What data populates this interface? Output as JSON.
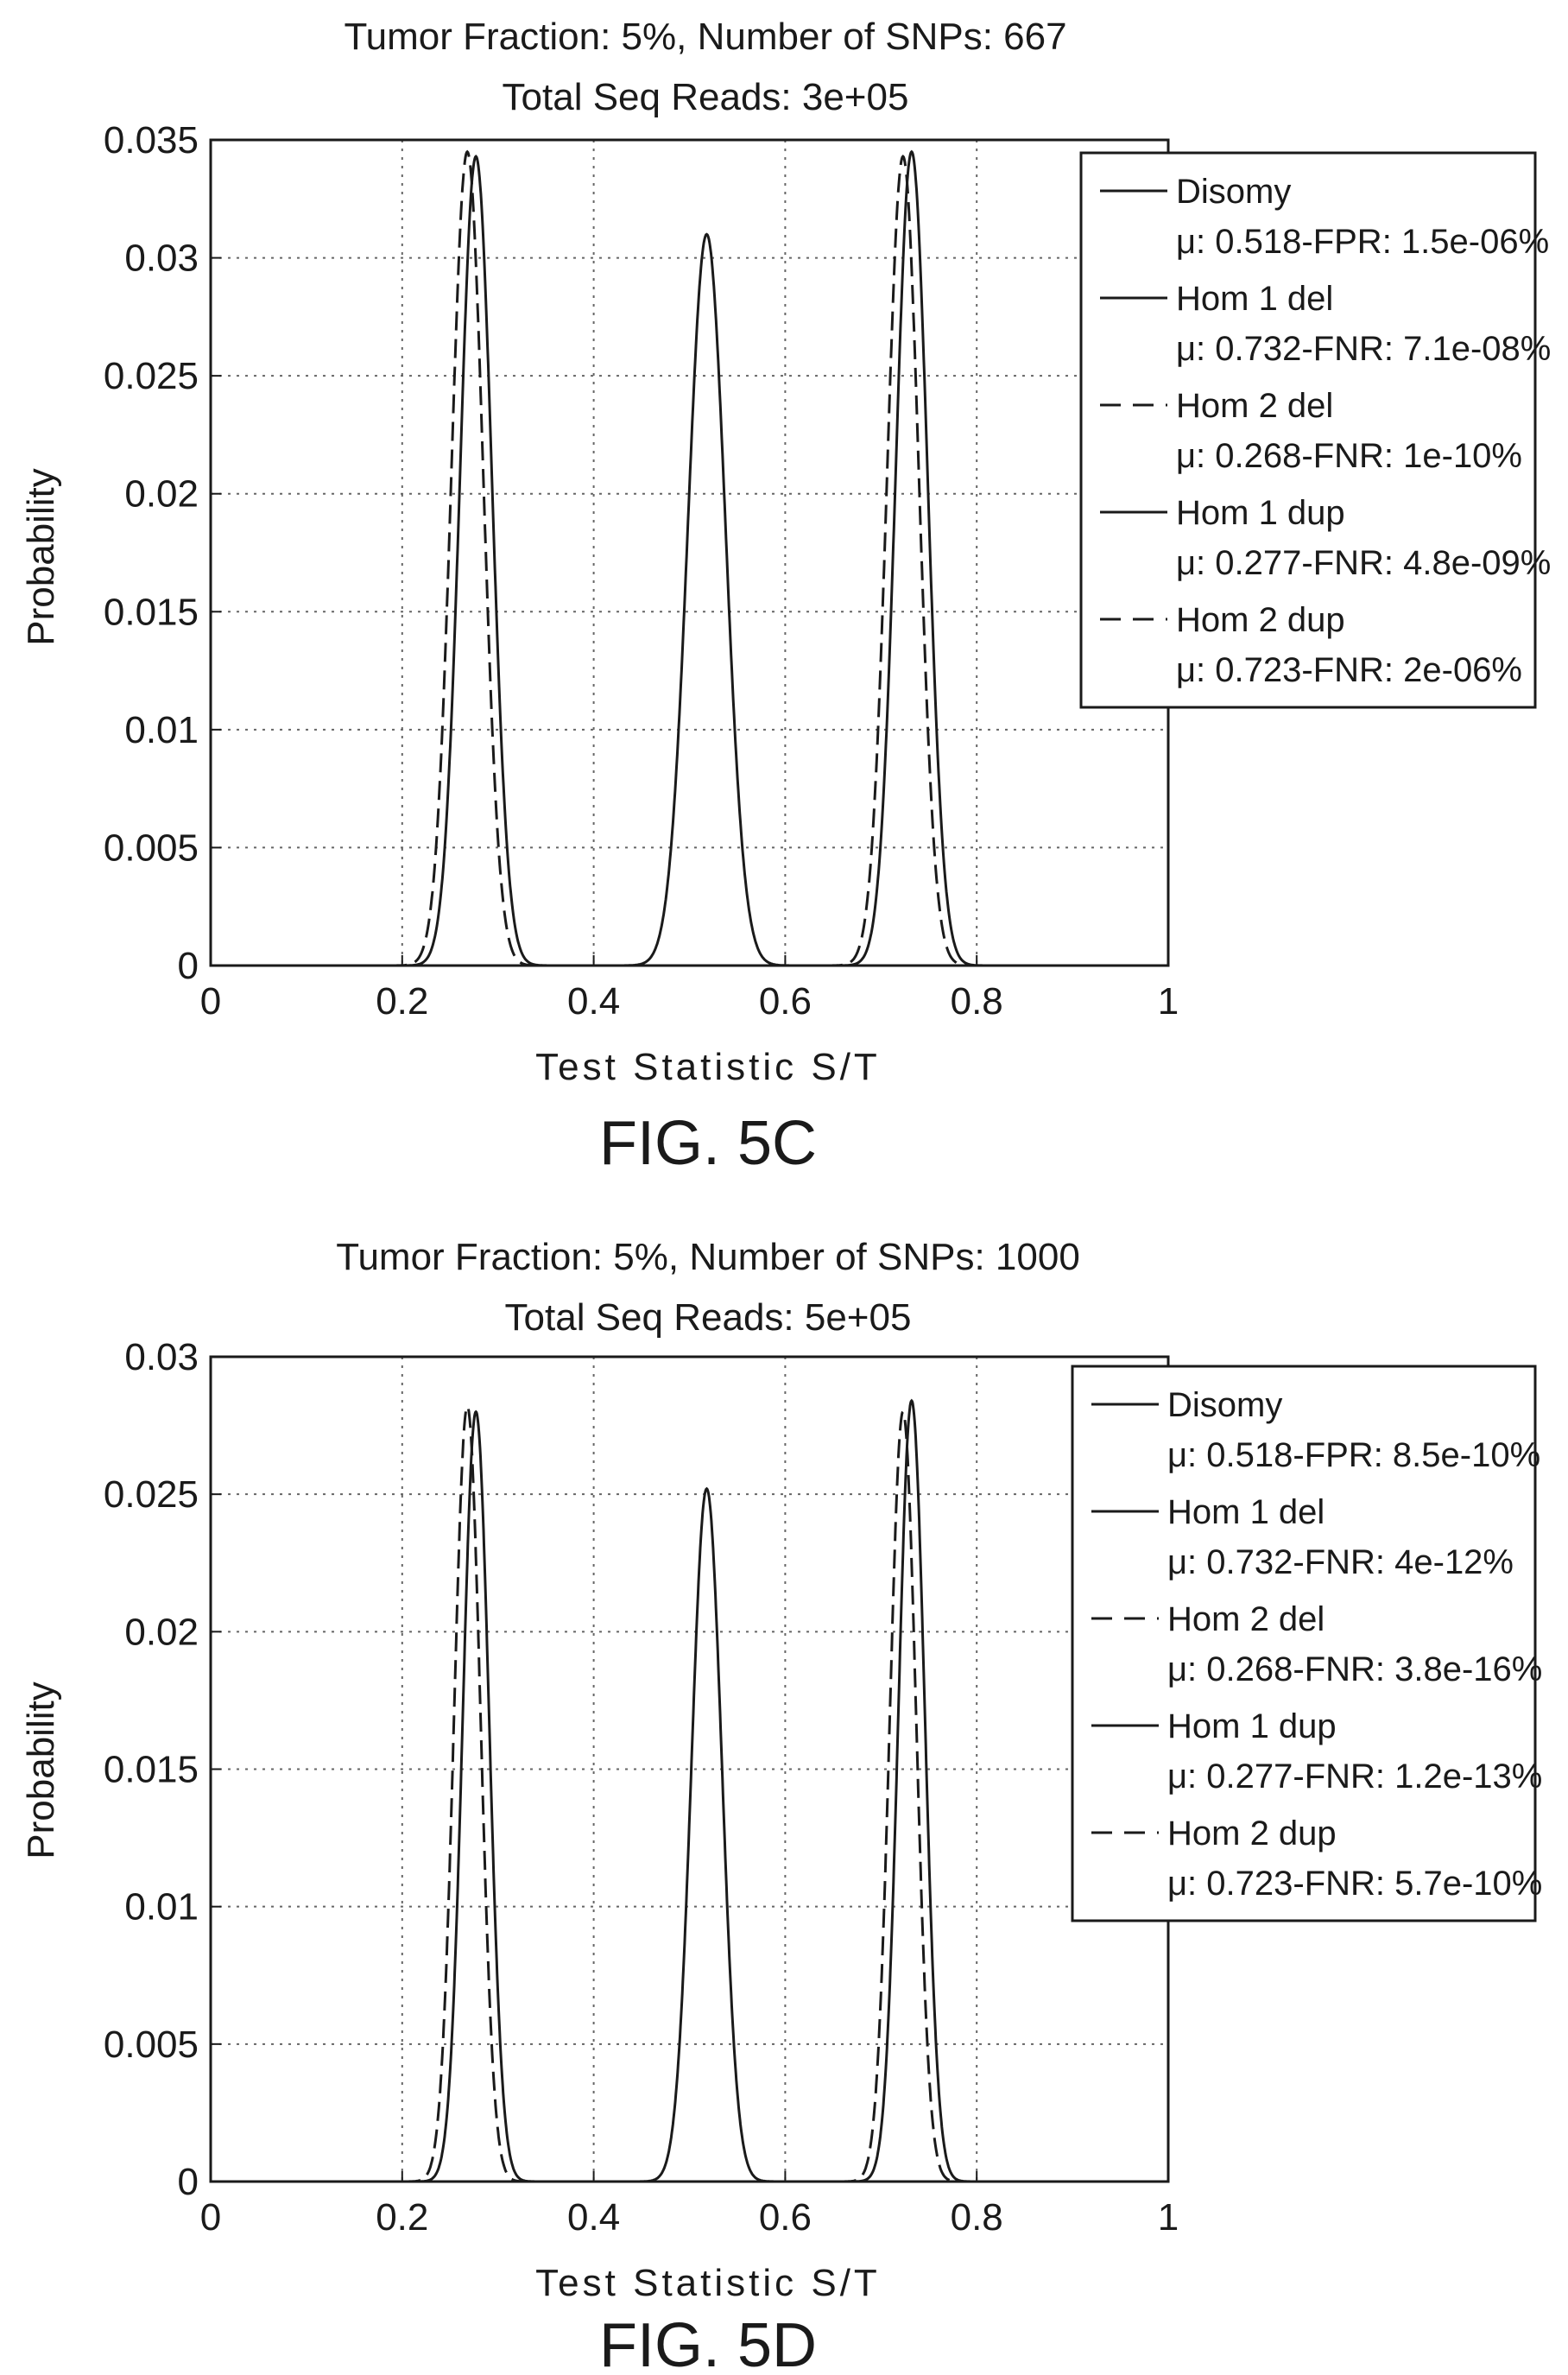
{
  "chart_data": [
    {
      "type": "line",
      "title": "Tumor Fraction: 5%, Number of SNPs: 667",
      "subtitle": "Total Seq Reads: 3e+05",
      "xlabel": "Test Statistic S/T",
      "ylabel": "Probability",
      "xlim": [
        0,
        1
      ],
      "ylim": [
        0,
        0.035
      ],
      "xticks": [
        "0",
        "0.2",
        "0.4",
        "0.6",
        "0.8",
        "1"
      ],
      "yticks": [
        "0",
        "0.005",
        "0.01",
        "0.015",
        "0.02",
        "0.025",
        "0.03",
        "0.035"
      ],
      "grid": true,
      "legend_position": "top-right",
      "caption": "FIG. 5C",
      "series": [
        {
          "name": "Disomy",
          "stat": "μ: 0.518-FPR: 1.5e-06%",
          "style": "solid",
          "mean": 0.518,
          "peak": 0.031,
          "sd": 0.0195
        },
        {
          "name": "Hom 1 del",
          "stat": "μ: 0.732-FNR: 7.1e-08%",
          "style": "solid",
          "mean": 0.732,
          "peak": 0.0345,
          "sd": 0.0166
        },
        {
          "name": "Hom 2 del",
          "stat": "μ: 0.268-FNR: 1e-10%",
          "style": "dashed",
          "mean": 0.268,
          "peak": 0.0345,
          "sd": 0.0166
        },
        {
          "name": "Hom 1 dup",
          "stat": "μ: 0.277-FNR: 4.8e-09%",
          "style": "solid",
          "mean": 0.277,
          "peak": 0.0343,
          "sd": 0.0166
        },
        {
          "name": "Hom 2 dup",
          "stat": "μ: 0.723-FNR: 2e-06%",
          "style": "dashed",
          "mean": 0.723,
          "peak": 0.0343,
          "sd": 0.0166
        }
      ]
    },
    {
      "type": "line",
      "title": "Tumor Fraction: 5%, Number of SNPs: 1000",
      "subtitle": "Total Seq Reads: 5e+05",
      "xlabel": "Test Statistic S/T",
      "ylabel": "Probability",
      "xlim": [
        0,
        1
      ],
      "ylim": [
        0,
        0.03
      ],
      "xticks": [
        "0",
        "0.2",
        "0.4",
        "0.6",
        "0.8",
        "1"
      ],
      "yticks": [
        "0",
        "0.005",
        "0.01",
        "0.015",
        "0.02",
        "0.025",
        "0.03"
      ],
      "grid": true,
      "legend_position": "top-right",
      "caption": "FIG. 5D",
      "series": [
        {
          "name": "Disomy",
          "stat": "μ: 0.518-FPR: 8.5e-10%",
          "style": "solid",
          "mean": 0.518,
          "peak": 0.0252,
          "sd": 0.0158
        },
        {
          "name": "Hom 1 del",
          "stat": "μ: 0.732-FNR: 4e-12%",
          "style": "solid",
          "mean": 0.732,
          "peak": 0.0284,
          "sd": 0.0137
        },
        {
          "name": "Hom 2 del",
          "stat": "μ: 0.268-FNR: 3.8e-16%",
          "style": "dashed",
          "mean": 0.268,
          "peak": 0.0282,
          "sd": 0.0137
        },
        {
          "name": "Hom 1 dup",
          "stat": "μ: 0.277-FNR: 1.2e-13%",
          "style": "solid",
          "mean": 0.277,
          "peak": 0.028,
          "sd": 0.0137
        },
        {
          "name": "Hom 2 dup",
          "stat": "μ: 0.723-FNR: 5.7e-10%",
          "style": "dashed",
          "mean": 0.723,
          "peak": 0.028,
          "sd": 0.0137
        }
      ]
    }
  ]
}
